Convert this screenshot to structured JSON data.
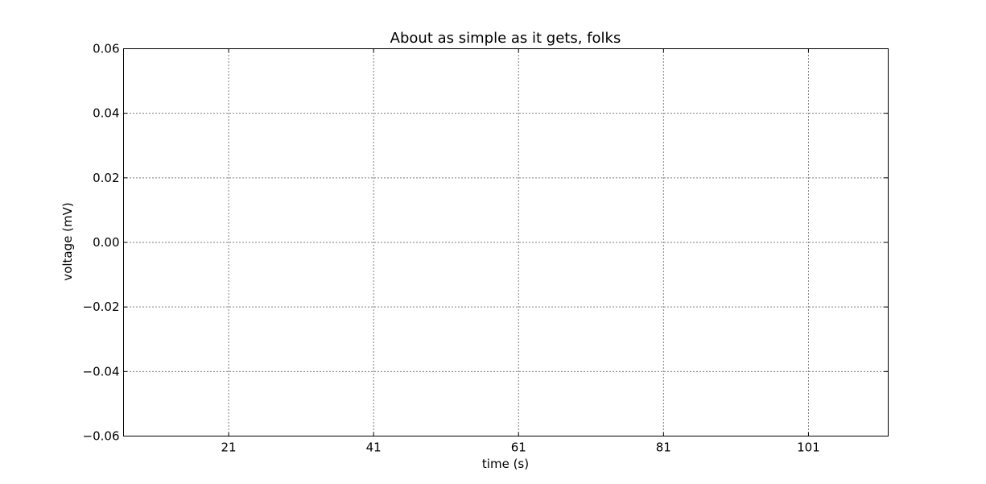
{
  "chart_data": {
    "type": "line",
    "title": "About as simple as it gets, folks",
    "xlabel": "time (s)",
    "ylabel": "voltage (mV)",
    "xlim": [
      6.5,
      112
    ],
    "ylim": [
      -0.06,
      0.06
    ],
    "x_ticks": [
      21,
      41,
      61,
      81,
      101
    ],
    "x_tick_labels": [
      "21",
      "41",
      "61",
      "81",
      "101"
    ],
    "y_ticks": [
      -0.06,
      -0.04,
      -0.02,
      0.0,
      0.02,
      0.04,
      0.06
    ],
    "y_tick_labels": [
      "−0.06",
      "−0.04",
      "−0.02",
      "0.00",
      "0.02",
      "0.04",
      "0.06"
    ],
    "grid": true,
    "series": []
  }
}
